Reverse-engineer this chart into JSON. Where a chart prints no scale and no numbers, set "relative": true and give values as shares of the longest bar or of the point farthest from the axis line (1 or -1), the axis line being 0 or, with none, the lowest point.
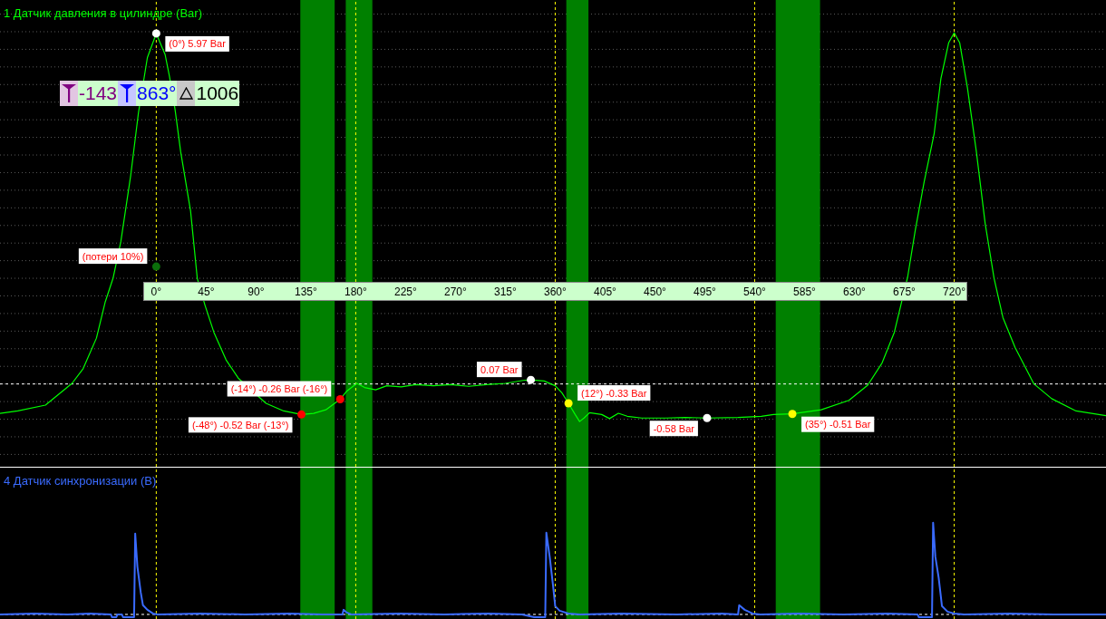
{
  "chart_data": [
    {
      "type": "line",
      "title": "1 Датчик давления в цилиндре (Bar)",
      "xlim": [
        -141,
        857
      ],
      "xticks": [
        {
          "value": 0,
          "label": "0°"
        },
        {
          "value": 45,
          "label": "45°"
        },
        {
          "value": 90,
          "label": "90°"
        },
        {
          "value": 135,
          "label": "135°"
        },
        {
          "value": 180,
          "label": "180°"
        },
        {
          "value": 225,
          "label": "225°"
        },
        {
          "value": 270,
          "label": "270°"
        },
        {
          "value": 315,
          "label": "315°"
        },
        {
          "value": 360,
          "label": "360°"
        },
        {
          "value": 405,
          "label": "405°"
        },
        {
          "value": 450,
          "label": "450°"
        },
        {
          "value": 495,
          "label": "495°"
        },
        {
          "value": 540,
          "label": "540°"
        },
        {
          "value": 585,
          "label": "585°"
        },
        {
          "value": 630,
          "label": "630°"
        },
        {
          "value": 675,
          "label": "675°"
        },
        {
          "value": 720,
          "label": "720°"
        }
      ],
      "ylim": [
        -1.41,
        6.54
      ],
      "yticks": [
        {
          "value": -1.2,
          "label": null
        },
        {
          "value": -0.9,
          "label": null
        },
        {
          "value": -0.6,
          "label": null
        },
        {
          "value": -0.3,
          "label": null
        },
        {
          "value": 0,
          "label": null
        },
        {
          "value": 0.3,
          "label": null
        },
        {
          "value": 0.6,
          "label": null
        },
        {
          "value": 0.9,
          "label": null
        },
        {
          "value": 1.2,
          "label": null
        },
        {
          "value": 1.5,
          "label": null
        },
        {
          "value": 1.8,
          "label": null
        },
        {
          "value": 2.1,
          "label": null
        },
        {
          "value": 2.4,
          "label": null
        },
        {
          "value": 2.7,
          "label": null
        },
        {
          "value": 3,
          "label": null
        },
        {
          "value": 3.3,
          "label": null
        },
        {
          "value": 3.6,
          "label": null
        },
        {
          "value": 3.9,
          "label": null
        },
        {
          "value": 4.2,
          "label": null
        },
        {
          "value": 4.5,
          "label": null
        },
        {
          "value": 4.8,
          "label": null
        },
        {
          "value": 5.1,
          "label": null
        },
        {
          "value": 5.4,
          "label": null
        },
        {
          "value": 5.7,
          "label": null
        },
        {
          "value": 6,
          "label": null
        },
        {
          "value": 6.3,
          "label": null
        }
      ],
      "tick_labels": "x",
      "grid": "y",
      "series": [
        {
          "color": "#00ff00",
          "x": [
            -141,
            -125,
            -100,
            -76,
            -66,
            -54,
            -46,
            -39,
            -32,
            -23,
            -16,
            -8,
            0,
            8,
            12,
            17,
            22,
            31,
            37,
            44,
            52,
            63,
            74,
            99,
            115,
            131,
            142,
            153,
            166,
            172,
            181,
            188,
            198,
            208,
            221,
            234,
            250,
            266,
            282,
            298,
            315,
            331,
            338,
            350,
            360,
            366,
            372,
            378,
            382,
            386,
            391,
            402,
            409,
            417,
            425,
            438,
            460,
            477,
            497,
            525,
            546,
            557,
            574,
            600,
            625,
            642,
            655,
            666,
            672,
            678,
            685,
            693,
            702,
            708,
            715,
            720,
            725,
            732,
            740,
            748,
            756,
            764,
            775,
            792,
            808,
            830,
            857
          ],
          "values": [
            -0.5,
            -0.46,
            -0.36,
            0.01,
            0.26,
            0.78,
            1.4,
            1.8,
            2.42,
            3.56,
            4.63,
            5.56,
            5.97,
            5.61,
            5.23,
            4.67,
            3.96,
            2.94,
            1.8,
            1.34,
            0.88,
            0.41,
            0.1,
            -0.33,
            -0.46,
            -0.52,
            -0.5,
            -0.44,
            -0.26,
            -0.12,
            0.01,
            -0.06,
            -0.1,
            -0.03,
            -0.05,
            -0.01,
            -0.03,
            -0.01,
            -0.04,
            -0.01,
            0.01,
            0.06,
            0.07,
            0.05,
            -0.03,
            -0.15,
            -0.33,
            -0.52,
            -0.64,
            -0.58,
            -0.49,
            -0.52,
            -0.59,
            -0.5,
            -0.55,
            -0.58,
            -0.58,
            -0.57,
            -0.58,
            -0.57,
            -0.55,
            -0.52,
            -0.51,
            -0.44,
            -0.28,
            -0.02,
            0.36,
            0.88,
            1.35,
            1.82,
            2.63,
            3.45,
            4.27,
            5.2,
            5.81,
            5.98,
            5.81,
            5.04,
            3.96,
            2.73,
            1.8,
            1.13,
            0.62,
            0.0,
            -0.25,
            -0.46,
            -0.54
          ]
        },
        {
          "type": "scatter",
          "marker": "circle",
          "x": [
            0,
            0,
            131,
            166,
            338,
            372,
            497,
            574
          ],
          "values": [
            5.97,
            2.0,
            -0.52,
            -0.26,
            0.07,
            -0.33,
            -0.58,
            -0.51
          ],
          "colors": [
            "#ffffff",
            "#0b6e0b",
            "#ff0000",
            "#ff0000",
            "#ffffff",
            "#ffff00",
            "#ffffff",
            "#ffff00"
          ],
          "value_labels": [
            "(0°) 5.97 Bar",
            "(потери 10%)",
            "(-48°) -0.52 Bar (-13°)",
            "(-14°) -0.26 Bar (-16°)",
            "0.07 Bar",
            "(12°) -0.33 Bar",
            "-0.58 Bar",
            "(35°) -0.51 Bar"
          ]
        }
      ],
      "bands": [
        {
          "axis": "x",
          "from": 130,
          "to": 161,
          "color": "#008000"
        },
        {
          "axis": "x",
          "from": 171,
          "to": 195,
          "color": "#008000"
        },
        {
          "axis": "x",
          "from": 370,
          "to": 390,
          "color": "#008000"
        },
        {
          "axis": "x",
          "from": 559,
          "to": 599,
          "color": "#008000"
        }
      ],
      "ref_lines": [
        {
          "axis": "x",
          "value": 0,
          "color": "#ffff00",
          "line_style": "dashed"
        },
        {
          "axis": "x",
          "value": 180,
          "color": "#ffff00",
          "line_style": "dashed"
        },
        {
          "axis": "x",
          "value": 360,
          "color": "#ffff00",
          "line_style": "dashed"
        },
        {
          "axis": "x",
          "value": 540,
          "color": "#ffff00",
          "line_style": "dashed"
        },
        {
          "axis": "x",
          "value": 720,
          "color": "#ffff00",
          "line_style": "dashed"
        },
        {
          "axis": "y",
          "value": 0,
          "color": "#ffffff",
          "line_style": "dashed"
        }
      ],
      "annotations": [
        "-143",
        "863°",
        "1006"
      ]
    },
    {
      "type": "line",
      "title": "4 Датчик синхронизации (В)",
      "relative": true,
      "xlim": [
        -141,
        857
      ],
      "tick_labels": false,
      "series": [
        {
          "color": "#3a6bff",
          "x": [
            -141,
            -110,
            -80,
            -60,
            -41,
            -40,
            -36,
            -35,
            -31,
            -30,
            -20,
            -19,
            -17,
            -14,
            -12,
            -8,
            -3,
            1,
            40,
            80,
            120,
            150,
            168,
            169,
            172,
            176,
            220,
            260,
            300,
            330,
            341,
            351,
            352,
            355,
            358,
            360,
            364,
            372,
            382,
            420,
            470,
            510,
            525,
            526,
            531,
            538,
            545,
            580,
            620,
            660,
            687,
            688,
            700,
            701,
            703,
            706,
            709,
            714,
            720,
            729,
            770,
            810,
            857
          ],
          "values": [
            0,
            0.01,
            0,
            0.01,
            0,
            -0.03,
            -0.03,
            0,
            0,
            -0.03,
            -0.03,
            0.88,
            0.52,
            0.24,
            0.1,
            0.05,
            0.01,
            0,
            0.01,
            0,
            0.01,
            0,
            0,
            0.05,
            0.02,
            0,
            0.01,
            0,
            0.01,
            0,
            -0.03,
            -0.03,
            0.89,
            0.63,
            0.32,
            0.09,
            0.04,
            0.01,
            0,
            0.01,
            0,
            0.01,
            0,
            0.1,
            0.05,
            0.01,
            0,
            0.01,
            0,
            0.01,
            0,
            -0.03,
            -0.03,
            1,
            0.63,
            0.4,
            0.09,
            0.03,
            0.01,
            0,
            0.01,
            0,
            0
          ]
        }
      ],
      "bands": [
        {
          "axis": "x",
          "from": 130,
          "to": 161,
          "color": "#008000"
        },
        {
          "axis": "x",
          "from": 171,
          "to": 195,
          "color": "#008000"
        },
        {
          "axis": "x",
          "from": 370,
          "to": 390,
          "color": "#008000"
        },
        {
          "axis": "x",
          "from": 559,
          "to": 599,
          "color": "#008000"
        }
      ],
      "ref_lines": [
        {
          "axis": "x",
          "value": 0,
          "color": "#ffff00",
          "line_style": "dashed"
        },
        {
          "axis": "x",
          "value": 180,
          "color": "#ffff00",
          "line_style": "dashed"
        },
        {
          "axis": "x",
          "value": 360,
          "color": "#ffff00",
          "line_style": "dashed"
        },
        {
          "axis": "x",
          "value": 540,
          "color": "#ffff00",
          "line_style": "dashed"
        },
        {
          "axis": "x",
          "value": 720,
          "color": "#ffff00",
          "line_style": "dashed"
        },
        {
          "axis": "y",
          "value": 0,
          "color": "#ffffff",
          "line_style": "dashed"
        }
      ]
    }
  ]
}
